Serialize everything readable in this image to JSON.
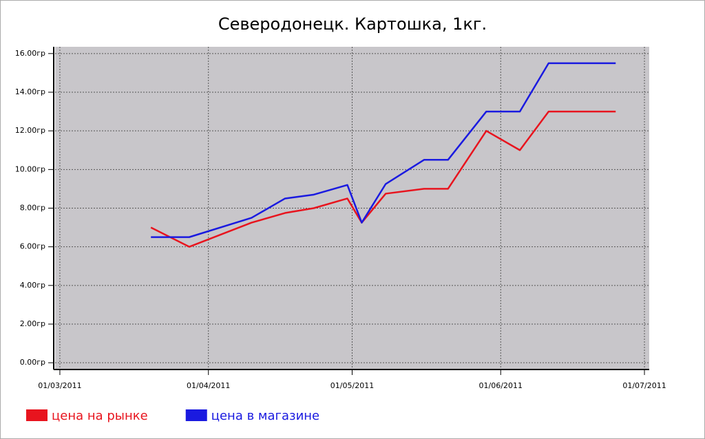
{
  "chart_data": {
    "type": "line",
    "title": "Северодонецк. Картошка, 1кг.",
    "x": [
      "20/03/2011",
      "28/03/2011",
      "10/04/2011",
      "17/04/2011",
      "23/04/2011",
      "30/04/2011",
      "03/05/2011",
      "08/05/2011",
      "16/05/2011",
      "21/05/2011",
      "29/05/2011",
      "05/06/2011",
      "11/06/2011",
      "25/06/2011"
    ],
    "series": [
      {
        "name": "цена на рынке",
        "color": "#e8141e",
        "values": [
          7.0,
          6.0,
          7.25,
          7.75,
          8.0,
          8.5,
          7.25,
          8.75,
          9.0,
          9.0,
          12.0,
          11.0,
          13.0,
          13.0
        ]
      },
      {
        "name": "цена в магазине",
        "color": "#1a1ae0",
        "values": [
          6.5,
          6.5,
          7.5,
          8.5,
          8.7,
          9.2,
          7.25,
          9.25,
          10.5,
          10.5,
          13.0,
          13.0,
          15.5,
          15.5
        ]
      }
    ],
    "xlim": [
      "28/02/2011",
      "02/07/2011"
    ],
    "xticks": [
      "01/03/2011",
      "01/04/2011",
      "01/05/2011",
      "01/06/2011",
      "01/07/2011"
    ],
    "ylim": [
      -0.35,
      16.35
    ],
    "yticks": [
      {
        "value": 0,
        "label": "0.00гр"
      },
      {
        "value": 2,
        "label": "2.00гр"
      },
      {
        "value": 4,
        "label": "4.00гр"
      },
      {
        "value": 6,
        "label": "6.00гр"
      },
      {
        "value": 8,
        "label": "8.00гр"
      },
      {
        "value": 10,
        "label": "10.00гр"
      },
      {
        "value": 12,
        "label": "12.00гр"
      },
      {
        "value": 14,
        "label": "14.00гр"
      },
      {
        "value": 16,
        "label": "16.00гр"
      }
    ],
    "grid": true,
    "legend": "bottom-left"
  }
}
